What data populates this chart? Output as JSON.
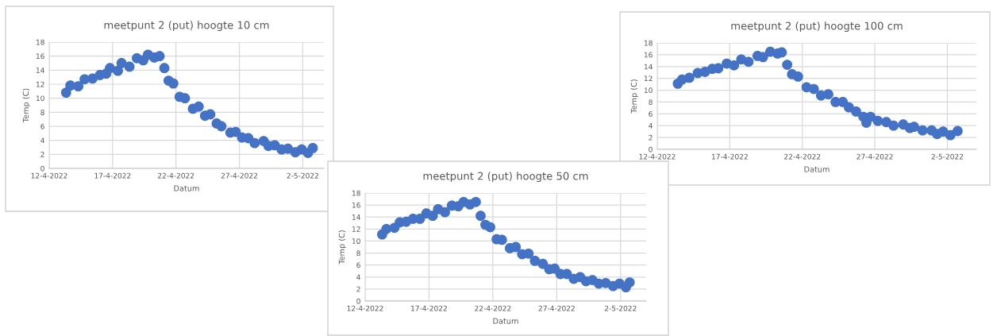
{
  "chart_data": [
    {
      "type": "scatter",
      "title": "meetpunt 2 (put) hoogte 10 cm",
      "xlabel": "Datum",
      "ylabel": "Temp (C)",
      "marker": "circle",
      "grid": true,
      "xlim": [
        "2022-04-12",
        "2022-05-03T16:00"
      ],
      "ylim": [
        0,
        18
      ],
      "yticks": [
        0,
        2,
        4,
        6,
        8,
        10,
        12,
        14,
        16,
        18
      ],
      "xticks": [
        {
          "value": "2022-04-12",
          "label": "12-4-2022"
        },
        {
          "value": "2022-04-17",
          "label": "17-4-2022"
        },
        {
          "value": "2022-04-22",
          "label": "22-4-2022"
        },
        {
          "value": "2022-04-27",
          "label": "27-4-2022"
        },
        {
          "value": "2022-05-02",
          "label": "2-5-2022"
        }
      ],
      "series": [
        {
          "color": "#4472c4",
          "x": [
            "2022-04-13T08:00",
            "2022-04-13T16:00",
            "2022-04-14T07:00",
            "2022-04-14T19:00",
            "2022-04-15T10:00",
            "2022-04-16T00:00",
            "2022-04-16T12:00",
            "2022-04-16T19:00",
            "2022-04-17T10:00",
            "2022-04-17T17:00",
            "2022-04-18T08:00",
            "2022-04-18T22:00",
            "2022-04-19T10:00",
            "2022-04-19T19:00",
            "2022-04-20T07:00",
            "2022-04-20T17:00",
            "2022-04-21T02:00",
            "2022-04-21T10:00",
            "2022-04-21T19:00",
            "2022-04-22T07:00",
            "2022-04-22T17:00",
            "2022-04-23T08:00",
            "2022-04-23T19:00",
            "2022-04-24T07:00",
            "2022-04-24T17:00",
            "2022-04-25T05:00",
            "2022-04-25T14:00",
            "2022-04-26T07:00",
            "2022-04-26T17:00",
            "2022-04-27T05:00",
            "2022-04-27T17:00",
            "2022-04-28T05:00",
            "2022-04-28T22:00",
            "2022-04-29T07:00",
            "2022-04-29T19:00",
            "2022-04-30T08:00",
            "2022-04-30T20:00",
            "2022-05-01T10:00",
            "2022-05-01T22:00",
            "2022-05-02T10:00",
            "2022-05-02T19:00"
          ],
          "values": [
            10.8,
            11.8,
            11.7,
            12.7,
            12.8,
            13.3,
            13.5,
            14.3,
            13.9,
            15.0,
            14.5,
            15.7,
            15.4,
            16.2,
            15.8,
            16.0,
            14.3,
            12.5,
            12.1,
            10.2,
            10.0,
            8.5,
            8.8,
            7.5,
            7.7,
            6.4,
            6.0,
            5.1,
            5.2,
            4.4,
            4.3,
            3.6,
            3.9,
            3.2,
            3.3,
            2.7,
            2.8,
            2.3,
            2.7,
            2.2,
            2.9
          ]
        }
      ]
    },
    {
      "type": "scatter",
      "title": "meetpunt 2 (put) hoogte 50 cm",
      "xlabel": "Datum",
      "ylabel": "Temp (C)",
      "marker": "circle",
      "grid": true,
      "xlim": [
        "2022-04-12",
        "2022-05-04"
      ],
      "ylim": [
        0,
        18
      ],
      "yticks": [
        0,
        2,
        4,
        6,
        8,
        10,
        12,
        14,
        16,
        18
      ],
      "xticks": [
        {
          "value": "2022-04-12",
          "label": "12-4-2022"
        },
        {
          "value": "2022-04-17",
          "label": "17-4-2022"
        },
        {
          "value": "2022-04-22",
          "label": "22-4-2022"
        },
        {
          "value": "2022-04-27",
          "label": "27-4-2022"
        },
        {
          "value": "2022-05-02",
          "label": "2-5-2022"
        }
      ],
      "series": [
        {
          "color": "#4472c4",
          "x": [
            "2022-04-13T08:00",
            "2022-04-13T16:00",
            "2022-04-14T07:00",
            "2022-04-14T17:00",
            "2022-04-15T05:00",
            "2022-04-15T18:00",
            "2022-04-16T07:00",
            "2022-04-16T19:00",
            "2022-04-17T07:00",
            "2022-04-17T17:00",
            "2022-04-18T06:00",
            "2022-04-18T19:00",
            "2022-04-19T07:00",
            "2022-04-19T17:00",
            "2022-04-20T05:00",
            "2022-04-20T16:00",
            "2022-04-21T01:00",
            "2022-04-21T10:00",
            "2022-04-21T19:00",
            "2022-04-22T07:00",
            "2022-04-22T17:00",
            "2022-04-23T08:00",
            "2022-04-23T19:00",
            "2022-04-24T07:00",
            "2022-04-24T19:00",
            "2022-04-25T07:00",
            "2022-04-25T22:00",
            "2022-04-26T10:00",
            "2022-04-26T20:00",
            "2022-04-27T07:00",
            "2022-04-27T19:00",
            "2022-04-28T08:00",
            "2022-04-28T20:00",
            "2022-04-29T07:00",
            "2022-04-29T19:00",
            "2022-04-30T07:00",
            "2022-04-30T20:00",
            "2022-05-01T10:00",
            "2022-05-01T22:00",
            "2022-05-02T10:00",
            "2022-05-02T17:00"
          ],
          "values": [
            11.1,
            12.0,
            12.2,
            13.1,
            13.2,
            13.7,
            13.7,
            14.6,
            14.2,
            15.3,
            14.8,
            15.9,
            15.8,
            16.5,
            16.1,
            16.5,
            14.2,
            12.7,
            12.3,
            10.3,
            10.2,
            8.8,
            9.0,
            7.8,
            7.9,
            6.7,
            6.2,
            5.3,
            5.4,
            4.5,
            4.5,
            3.7,
            4.0,
            3.3,
            3.5,
            2.9,
            3.0,
            2.5,
            2.9,
            2.3,
            3.1
          ]
        }
      ]
    },
    {
      "type": "scatter",
      "title": "meetpunt 2 (put) hoogte 100 cm",
      "xlabel": "Datum",
      "ylabel": "Temp (C)",
      "marker": "circle",
      "grid": true,
      "xlim": [
        "2022-04-12",
        "2022-05-04"
      ],
      "ylim": [
        0,
        18
      ],
      "yticks": [
        0,
        2,
        4,
        6,
        8,
        10,
        12,
        14,
        16,
        18
      ],
      "xticks": [
        {
          "value": "2022-04-12",
          "label": "12-4-2022"
        },
        {
          "value": "2022-04-17",
          "label": "17-4-2022"
        },
        {
          "value": "2022-04-22",
          "label": "22-4-2022"
        },
        {
          "value": "2022-04-27",
          "label": "27-4-2022"
        },
        {
          "value": "2022-05-02",
          "label": "2-5-2022"
        }
      ],
      "series": [
        {
          "color": "#4472c4",
          "x": [
            "2022-04-13T10:00",
            "2022-04-13T17:00",
            "2022-04-14T05:00",
            "2022-04-14T19:00",
            "2022-04-15T07:00",
            "2022-04-15T19:00",
            "2022-04-16T05:00",
            "2022-04-16T19:00",
            "2022-04-17T07:00",
            "2022-04-17T19:00",
            "2022-04-18T07:00",
            "2022-04-18T22:00",
            "2022-04-19T07:00",
            "2022-04-19T19:00",
            "2022-04-20T07:00",
            "2022-04-20T14:00",
            "2022-04-20T23:00",
            "2022-04-21T07:00",
            "2022-04-21T17:00",
            "2022-04-22T07:00",
            "2022-04-22T19:00",
            "2022-04-23T07:00",
            "2022-04-23T19:00",
            "2022-04-24T07:00",
            "2022-04-24T19:00",
            "2022-04-25T05:00",
            "2022-04-25T17:00",
            "2022-04-26T05:00",
            "2022-04-26T10:00",
            "2022-04-26T17:00",
            "2022-04-27T05:00",
            "2022-04-27T19:00",
            "2022-04-28T07:00",
            "2022-04-28T23:00",
            "2022-04-29T10:00",
            "2022-04-29T17:00",
            "2022-04-30T07:00",
            "2022-04-30T22:00",
            "2022-05-01T07:00",
            "2022-05-01T17:00",
            "2022-05-02T05:00",
            "2022-05-02T17:00"
          ],
          "values": [
            11.1,
            11.8,
            12.1,
            12.9,
            13.1,
            13.6,
            13.7,
            14.5,
            14.2,
            15.2,
            14.8,
            15.8,
            15.6,
            16.5,
            16.2,
            16.4,
            14.3,
            12.7,
            12.3,
            10.5,
            10.2,
            9.1,
            9.3,
            8.0,
            8.0,
            7.1,
            6.4,
            5.5,
            4.5,
            5.5,
            4.8,
            4.6,
            4.0,
            4.2,
            3.6,
            3.8,
            3.2,
            3.2,
            2.6,
            3.0,
            2.4,
            3.1
          ]
        }
      ]
    }
  ]
}
